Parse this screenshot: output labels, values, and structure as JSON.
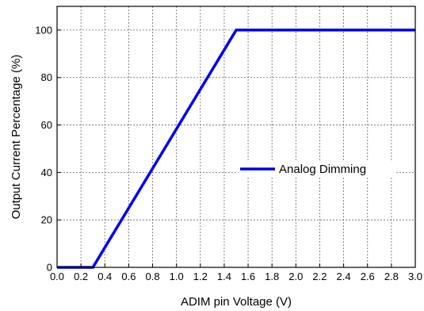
{
  "chart_data": {
    "type": "line",
    "title": "",
    "xlabel": "ADIM pin Voltage (V)",
    "ylabel": "Output Current Percentage (%)",
    "xlim": [
      0.0,
      3.0
    ],
    "ylim": [
      0,
      110
    ],
    "x_ticks": [
      0.0,
      0.2,
      0.4,
      0.6,
      0.8,
      1.0,
      1.2,
      1.4,
      1.6,
      1.8,
      2.0,
      2.2,
      2.4,
      2.6,
      2.8,
      3.0
    ],
    "x_tick_labels": [
      "0.0",
      "0.2",
      "0.4",
      "0.6",
      "0.8",
      "1.0",
      "1.2",
      "1.4",
      "1.6",
      "1.8",
      "2.0",
      "2.2",
      "2.4",
      "2.6",
      "2.8",
      "3.0"
    ],
    "y_ticks": [
      0,
      20,
      40,
      60,
      80,
      100
    ],
    "y_tick_labels": [
      "0",
      "20",
      "40",
      "60",
      "80",
      "100"
    ],
    "grid": true,
    "grid_style": "dashed",
    "legend_position": "right",
    "series": [
      {
        "name": "Analog Dimming",
        "color": "#0000ee",
        "x": [
          0.0,
          0.3,
          1.5,
          3.0
        ],
        "y": [
          0,
          0,
          100,
          100
        ]
      }
    ]
  }
}
